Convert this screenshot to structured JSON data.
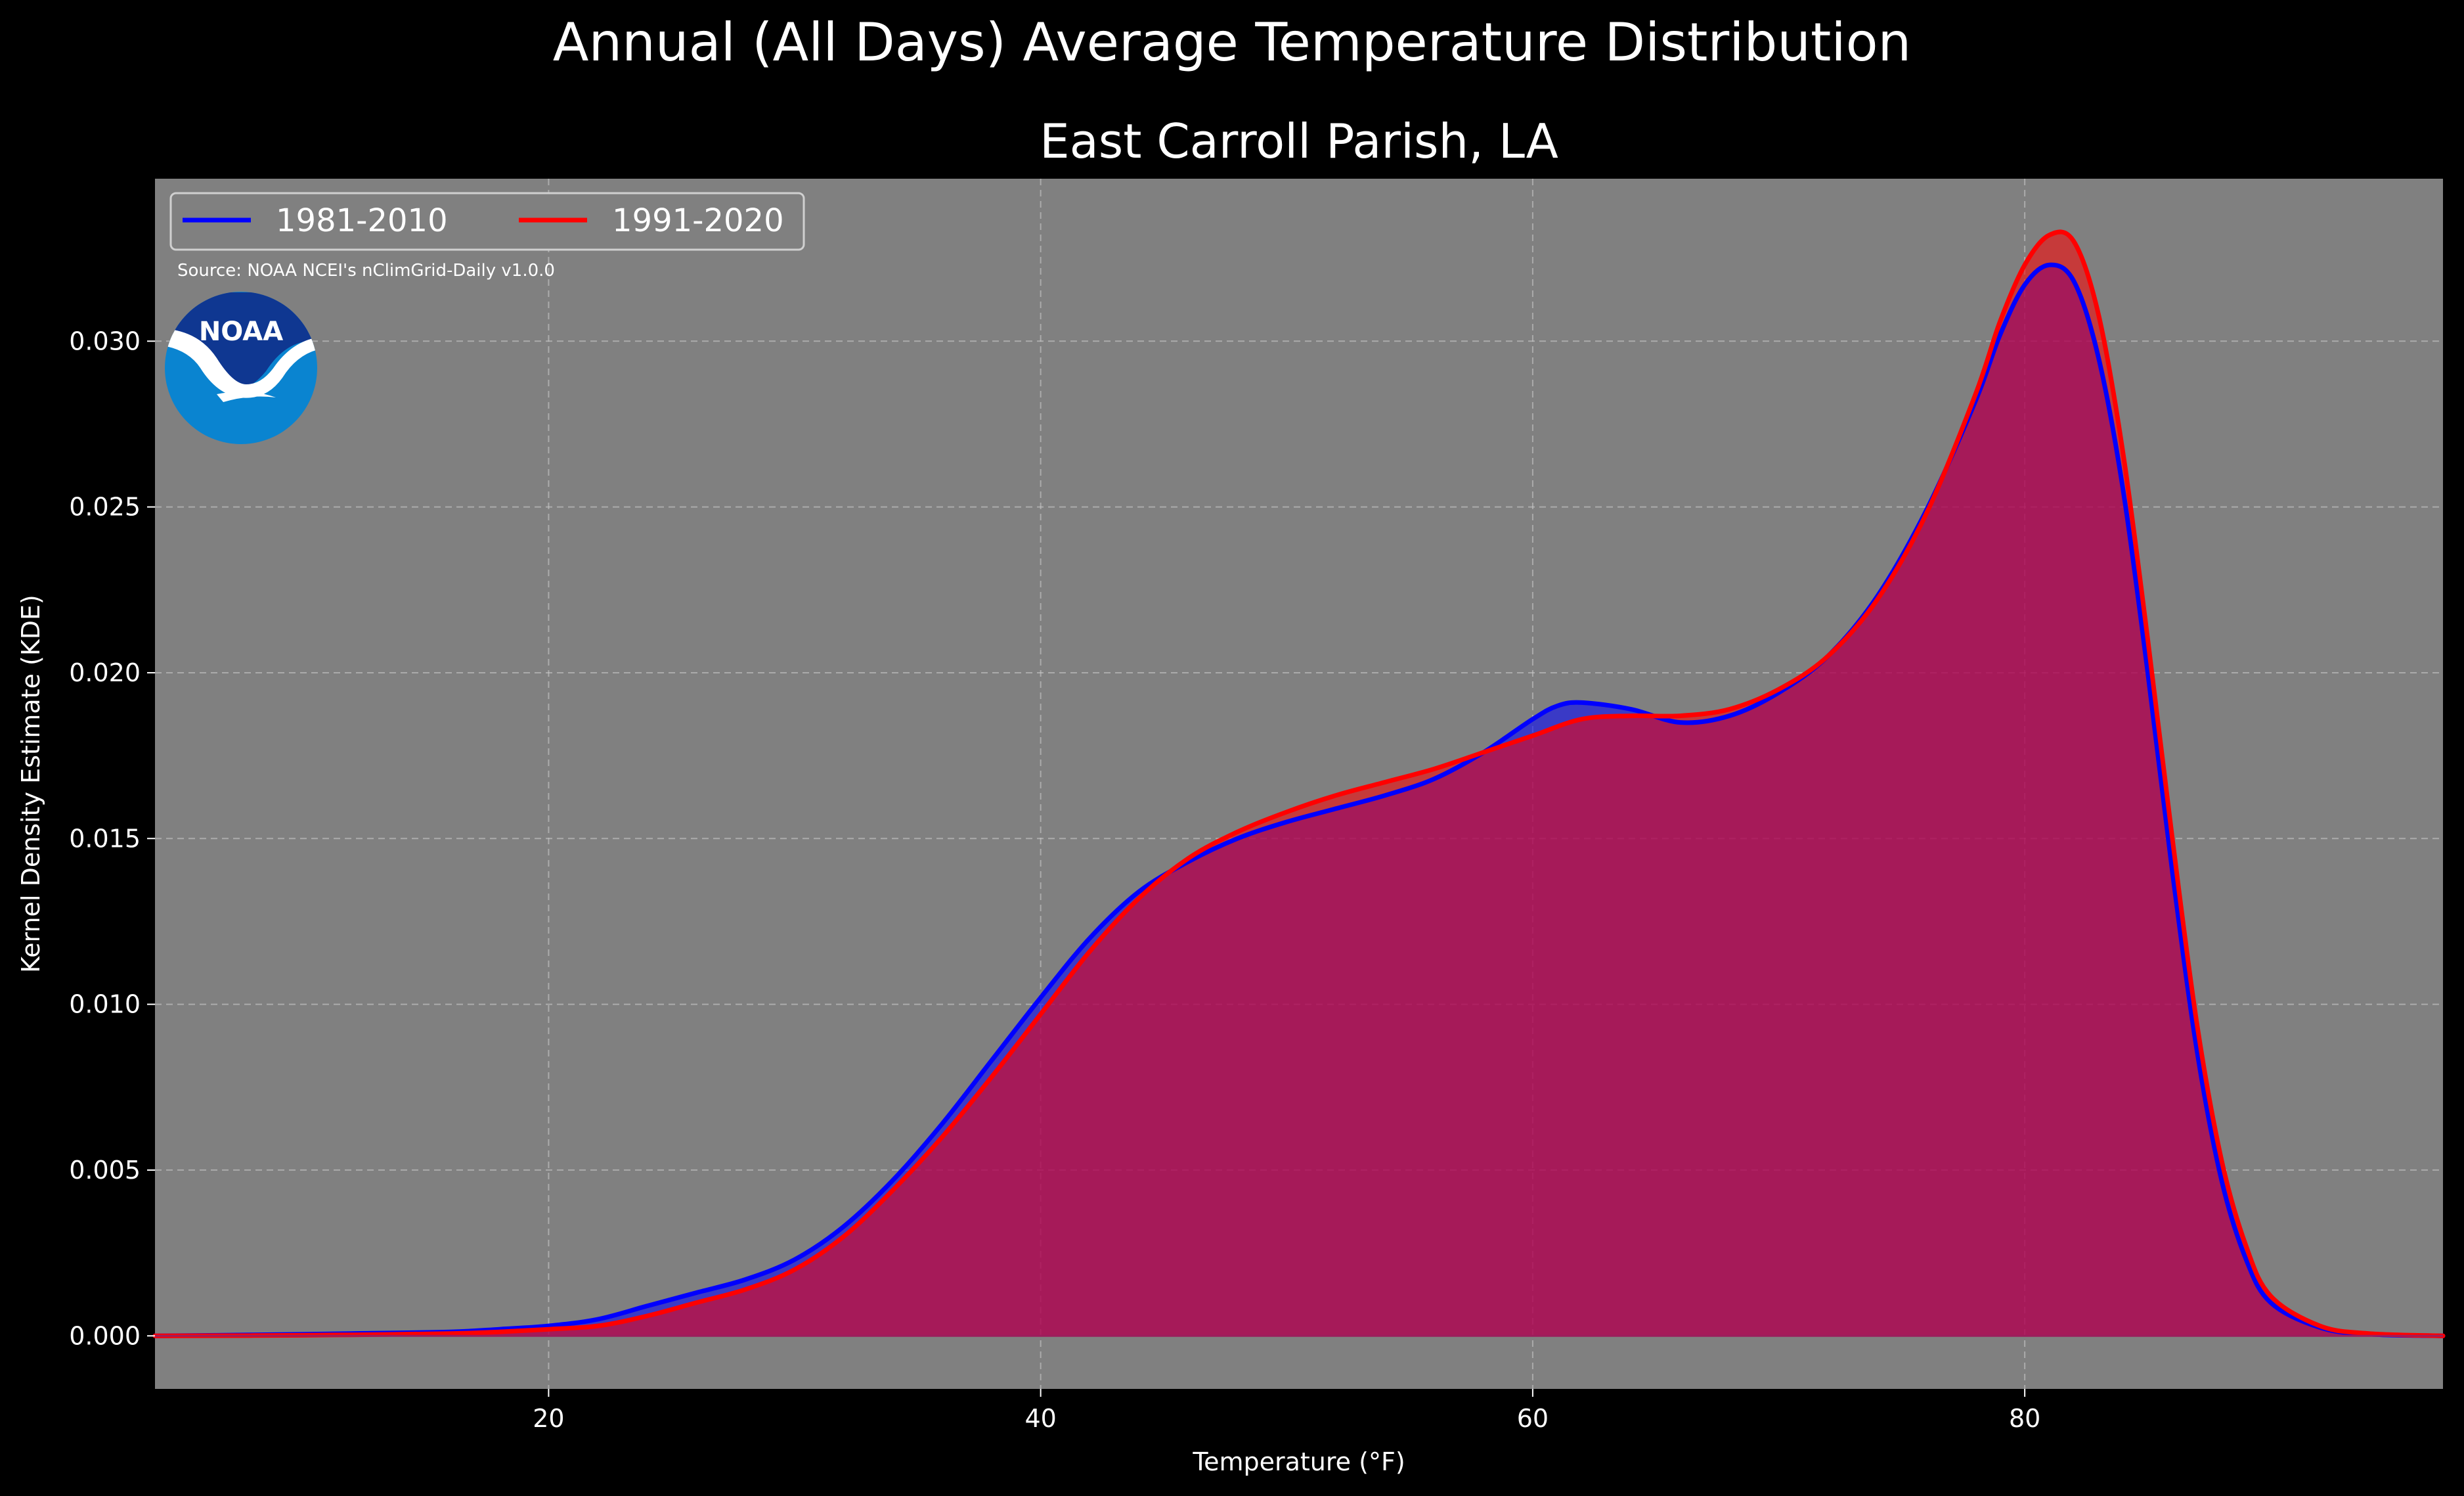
{
  "figure": {
    "suptitle": "Annual (All Days) Average Temperature Distribution",
    "source": "Source: NOAA NCEI's nClimGrid-Daily v1.0.0",
    "logo_text": "NOAA"
  },
  "colors": {
    "background": "#000000",
    "plot_background": "#808080",
    "series_1981": "#0000ff",
    "series_1991": "#ff0000",
    "overlap_fill": "#9c1d5c",
    "noaa_dark": "#0f3791",
    "noaa_light": "#0a84d0"
  },
  "chart_data": {
    "type": "area",
    "title": "East Carroll Parish, LA",
    "xlabel": "Temperature ($^\\circ$F)",
    "xlabel_display": "Temperature (°F)",
    "ylabel": "Kernel Density Estimate (KDE)",
    "xlim": [
      4.0,
      97.0
    ],
    "ylim": [
      -0.0016,
      0.0349
    ],
    "xticks": [
      20,
      40,
      60,
      80
    ],
    "xtick_labels": [
      "20",
      "40",
      "60",
      "80"
    ],
    "yticks": [
      0.0,
      0.005,
      0.01,
      0.015,
      0.02,
      0.025,
      0.03
    ],
    "ytick_labels": [
      "0.000",
      "0.005",
      "0.010",
      "0.015",
      "0.020",
      "0.025",
      "0.030"
    ],
    "grid": true,
    "legend_position": "top-left",
    "series": [
      {
        "name": "1981-2010",
        "color": "#0000ff",
        "x": [
          4,
          8,
          12,
          16,
          18,
          20,
          22,
          24,
          26,
          28,
          30,
          32,
          34,
          36,
          38,
          40,
          42,
          44,
          46,
          48,
          50,
          52,
          54,
          56,
          58,
          60,
          61,
          62,
          64,
          66,
          68,
          70,
          72,
          74,
          76,
          78,
          79,
          80,
          81,
          82,
          83,
          84,
          85,
          86,
          87,
          88,
          89,
          90,
          92,
          94,
          97
        ],
        "y": [
          0.0,
          3e-05,
          7e-05,
          0.00012,
          0.0002,
          0.0003,
          0.0005,
          0.0009,
          0.0013,
          0.0017,
          0.0023,
          0.0033,
          0.0047,
          0.0064,
          0.0083,
          0.0102,
          0.012,
          0.0134,
          0.0143,
          0.015,
          0.0155,
          0.0159,
          0.0163,
          0.0168,
          0.0176,
          0.0186,
          0.019,
          0.0191,
          0.0189,
          0.0185,
          0.0187,
          0.0194,
          0.0205,
          0.0223,
          0.0249,
          0.0282,
          0.0302,
          0.0317,
          0.0323,
          0.0318,
          0.0295,
          0.0255,
          0.02,
          0.014,
          0.0086,
          0.0047,
          0.0023,
          0.001,
          0.00025,
          5e-05,
          0.0
        ]
      },
      {
        "name": "1991-2020",
        "color": "#ff0000",
        "x": [
          4,
          8,
          12,
          16,
          18,
          20,
          22,
          24,
          26,
          28,
          30,
          32,
          34,
          36,
          38,
          40,
          42,
          44,
          46,
          48,
          50,
          52,
          54,
          56,
          58,
          60,
          62,
          64,
          66,
          68,
          70,
          72,
          74,
          76,
          78,
          79,
          80,
          81,
          82,
          83,
          84,
          85,
          86,
          87,
          88,
          89,
          90,
          92,
          94,
          97
        ],
        "y": [
          0.0,
          1e-05,
          3e-05,
          7e-05,
          0.00012,
          0.0002,
          0.0003,
          0.0006,
          0.001,
          0.0014,
          0.002,
          0.003,
          0.0044,
          0.006,
          0.0078,
          0.0097,
          0.0116,
          0.0132,
          0.0144,
          0.0152,
          0.0158,
          0.0163,
          0.0167,
          0.0171,
          0.0176,
          0.0181,
          0.0186,
          0.0187,
          0.0187,
          0.0189,
          0.0195,
          0.0205,
          0.0222,
          0.0248,
          0.0284,
          0.0306,
          0.0323,
          0.0332,
          0.033,
          0.0308,
          0.0266,
          0.021,
          0.015,
          0.0094,
          0.0053,
          0.0027,
          0.0012,
          0.0003,
          7e-05,
          0.0
        ]
      }
    ]
  }
}
